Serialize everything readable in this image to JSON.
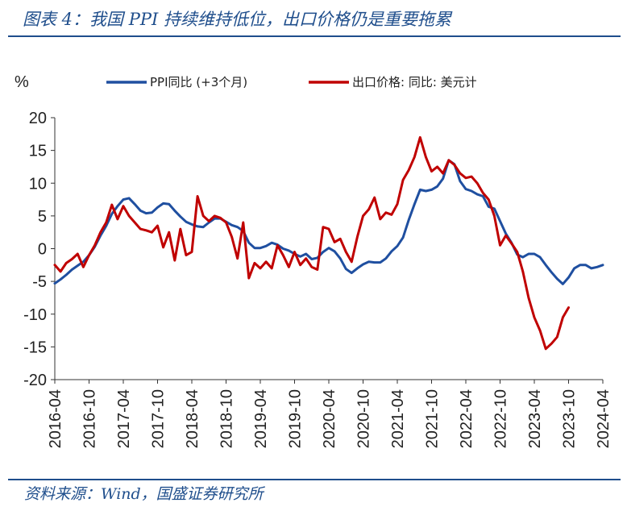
{
  "title": "图表 4：我国 PPI 持续维持低位，出口价格仍是重要拖累",
  "source": "资料来源：Wind，国盛证券研究所",
  "colors": {
    "accent": "#1f4e8c",
    "ppi": "#1f4fa0",
    "export": "#c00000"
  },
  "chart_data": {
    "type": "line",
    "ylabel": "%",
    "ylim": [
      -20,
      20
    ],
    "yticks": [
      -20,
      -15,
      -10,
      -5,
      0,
      5,
      10,
      15,
      20
    ],
    "xlim": [
      "2016-04",
      "2024-04"
    ],
    "xticks": [
      "2016-04",
      "2016-10",
      "2017-04",
      "2017-10",
      "2018-04",
      "2018-10",
      "2019-04",
      "2019-10",
      "2020-04",
      "2020-10",
      "2021-04",
      "2021-10",
      "2022-04",
      "2022-10",
      "2023-04",
      "2023-10",
      "2024-04"
    ],
    "legend_position": "top",
    "series": [
      {
        "name": "PPI同比 (+3个月)",
        "color": "#1f4fa0",
        "points": [
          [
            "2016-04",
            -5.3
          ],
          [
            "2016-05",
            -4.7
          ],
          [
            "2016-06",
            -4.0
          ],
          [
            "2016-07",
            -3.2
          ],
          [
            "2016-08",
            -2.6
          ],
          [
            "2016-09",
            -2.0
          ],
          [
            "2016-10",
            -1.0
          ],
          [
            "2016-11",
            0.3
          ],
          [
            "2016-12",
            2.0
          ],
          [
            "2017-01",
            3.5
          ],
          [
            "2017-02",
            5.3
          ],
          [
            "2017-03",
            6.5
          ],
          [
            "2017-04",
            7.5
          ],
          [
            "2017-05",
            7.7
          ],
          [
            "2017-06",
            6.8
          ],
          [
            "2017-07",
            5.8
          ],
          [
            "2017-08",
            5.4
          ],
          [
            "2017-09",
            5.5
          ],
          [
            "2017-10",
            6.3
          ],
          [
            "2017-11",
            6.9
          ],
          [
            "2017-12",
            6.8
          ],
          [
            "2018-01",
            5.8
          ],
          [
            "2018-02",
            4.9
          ],
          [
            "2018-03",
            4.1
          ],
          [
            "2018-04",
            3.7
          ],
          [
            "2018-05",
            3.4
          ],
          [
            "2018-06",
            3.3
          ],
          [
            "2018-07",
            4.0
          ],
          [
            "2018-08",
            4.6
          ],
          [
            "2018-09",
            4.6
          ],
          [
            "2018-10",
            4.1
          ],
          [
            "2018-11",
            3.6
          ],
          [
            "2018-12",
            3.3
          ],
          [
            "2019-01",
            2.7
          ],
          [
            "2019-02",
            0.9
          ],
          [
            "2019-03",
            0.1
          ],
          [
            "2019-04",
            0.1
          ],
          [
            "2019-05",
            0.4
          ],
          [
            "2019-06",
            0.9
          ],
          [
            "2019-07",
            0.6
          ],
          [
            "2019-08",
            0.0
          ],
          [
            "2019-09",
            -0.3
          ],
          [
            "2019-10",
            -0.8
          ],
          [
            "2019-11",
            -1.2
          ],
          [
            "2019-12",
            -0.8
          ],
          [
            "2020-01",
            -1.6
          ],
          [
            "2020-02",
            -1.4
          ],
          [
            "2020-03",
            -0.5
          ],
          [
            "2020-04",
            0.1
          ],
          [
            "2020-05",
            -0.4
          ],
          [
            "2020-06",
            -1.5
          ],
          [
            "2020-07",
            -3.1
          ],
          [
            "2020-08",
            -3.7
          ],
          [
            "2020-09",
            -3.0
          ],
          [
            "2020-10",
            -2.4
          ],
          [
            "2020-11",
            -2.0
          ],
          [
            "2020-12",
            -2.1
          ],
          [
            "2021-01",
            -2.1
          ],
          [
            "2021-02",
            -1.5
          ],
          [
            "2021-03",
            -0.4
          ],
          [
            "2021-04",
            0.4
          ],
          [
            "2021-05",
            1.7
          ],
          [
            "2021-06",
            4.4
          ],
          [
            "2021-07",
            6.8
          ],
          [
            "2021-08",
            9.0
          ],
          [
            "2021-09",
            8.8
          ],
          [
            "2021-10",
            9.0
          ],
          [
            "2021-11",
            9.5
          ],
          [
            "2021-12",
            10.7
          ],
          [
            "2022-01",
            13.5
          ],
          [
            "2022-02",
            12.9
          ],
          [
            "2022-03",
            10.3
          ],
          [
            "2022-04",
            9.1
          ],
          [
            "2022-05",
            8.8
          ],
          [
            "2022-06",
            8.3
          ],
          [
            "2022-07",
            8.0
          ],
          [
            "2022-08",
            6.4
          ],
          [
            "2022-09",
            6.1
          ],
          [
            "2022-10",
            4.2
          ],
          [
            "2022-11",
            2.3
          ],
          [
            "2022-12",
            0.9
          ],
          [
            "2023-01",
            -0.9
          ],
          [
            "2023-02",
            -1.3
          ],
          [
            "2023-03",
            -0.8
          ],
          [
            "2023-04",
            -0.8
          ],
          [
            "2023-05",
            -1.3
          ],
          [
            "2023-06",
            -2.5
          ],
          [
            "2023-07",
            -3.6
          ],
          [
            "2023-08",
            -4.6
          ],
          [
            "2023-09",
            -5.4
          ],
          [
            "2023-10",
            -4.4
          ],
          [
            "2023-11",
            -3.0
          ],
          [
            "2023-12",
            -2.5
          ],
          [
            "2024-01",
            -2.5
          ],
          [
            "2024-02",
            -3.0
          ],
          [
            "2024-03",
            -2.8
          ],
          [
            "2024-04",
            -2.5
          ]
        ]
      },
      {
        "name": "出口价格: 同比: 美元计",
        "color": "#c00000",
        "points": [
          [
            "2016-04",
            -2.5
          ],
          [
            "2016-05",
            -3.5
          ],
          [
            "2016-06",
            -2.2
          ],
          [
            "2016-07",
            -1.6
          ],
          [
            "2016-08",
            -0.8
          ],
          [
            "2016-09",
            -2.8
          ],
          [
            "2016-10",
            -1.0
          ],
          [
            "2016-11",
            0.5
          ],
          [
            "2016-12",
            2.5
          ],
          [
            "2017-01",
            4.0
          ],
          [
            "2017-02",
            6.7
          ],
          [
            "2017-03",
            4.5
          ],
          [
            "2017-04",
            6.5
          ],
          [
            "2017-05",
            5.0
          ],
          [
            "2017-06",
            4.0
          ],
          [
            "2017-07",
            3.0
          ],
          [
            "2017-08",
            2.8
          ],
          [
            "2017-09",
            2.5
          ],
          [
            "2017-10",
            3.5
          ],
          [
            "2017-11",
            0.2
          ],
          [
            "2017-12",
            2.5
          ],
          [
            "2018-01",
            -1.8
          ],
          [
            "2018-02",
            3.0
          ],
          [
            "2018-03",
            -1.0
          ],
          [
            "2018-04",
            -0.5
          ],
          [
            "2018-05",
            8.0
          ],
          [
            "2018-06",
            5.0
          ],
          [
            "2018-07",
            4.2
          ],
          [
            "2018-08",
            5.0
          ],
          [
            "2018-09",
            4.7
          ],
          [
            "2018-10",
            4.0
          ],
          [
            "2018-11",
            1.8
          ],
          [
            "2018-12",
            -1.5
          ],
          [
            "2019-01",
            4.0
          ],
          [
            "2019-02",
            -4.5
          ],
          [
            "2019-03",
            -2.2
          ],
          [
            "2019-04",
            -3.0
          ],
          [
            "2019-05",
            -2.0
          ],
          [
            "2019-06",
            -3.0
          ],
          [
            "2019-07",
            0.5
          ],
          [
            "2019-08",
            -1.0
          ],
          [
            "2019-09",
            -2.8
          ],
          [
            "2019-10",
            -0.5
          ],
          [
            "2019-11",
            -2.5
          ],
          [
            "2019-12",
            -1.5
          ],
          [
            "2020-01",
            -2.8
          ],
          [
            "2020-02",
            -3.2
          ],
          [
            "2020-03",
            3.3
          ],
          [
            "2020-04",
            3.0
          ],
          [
            "2020-05",
            1.0
          ],
          [
            "2020-06",
            1.5
          ],
          [
            "2020-07",
            -0.5
          ],
          [
            "2020-08",
            -2.0
          ],
          [
            "2020-09",
            1.8
          ],
          [
            "2020-10",
            5.0
          ],
          [
            "2020-11",
            6.0
          ],
          [
            "2020-12",
            7.8
          ],
          [
            "2021-01",
            4.5
          ],
          [
            "2021-02",
            5.5
          ],
          [
            "2021-03",
            5.2
          ],
          [
            "2021-04",
            6.8
          ],
          [
            "2021-05",
            10.5
          ],
          [
            "2021-06",
            12.0
          ],
          [
            "2021-07",
            14.0
          ],
          [
            "2021-08",
            17.0
          ],
          [
            "2021-09",
            14.0
          ],
          [
            "2021-10",
            11.8
          ],
          [
            "2021-11",
            12.5
          ],
          [
            "2021-12",
            11.5
          ],
          [
            "2022-01",
            13.5
          ],
          [
            "2022-02",
            12.8
          ],
          [
            "2022-03",
            11.5
          ],
          [
            "2022-04",
            10.8
          ],
          [
            "2022-05",
            11.0
          ],
          [
            "2022-06",
            10.0
          ],
          [
            "2022-07",
            8.5
          ],
          [
            "2022-08",
            7.5
          ],
          [
            "2022-09",
            5.0
          ],
          [
            "2022-10",
            0.5
          ],
          [
            "2022-11",
            2.0
          ],
          [
            "2022-12",
            0.8
          ],
          [
            "2023-01",
            -0.5
          ],
          [
            "2023-02",
            -3.5
          ],
          [
            "2023-03",
            -7.5
          ],
          [
            "2023-04",
            -10.5
          ],
          [
            "2023-05",
            -12.5
          ],
          [
            "2023-06",
            -15.3
          ],
          [
            "2023-07",
            -14.5
          ],
          [
            "2023-08",
            -13.5
          ],
          [
            "2023-09",
            -10.5
          ],
          [
            "2023-10",
            -9.0
          ]
        ]
      }
    ]
  }
}
